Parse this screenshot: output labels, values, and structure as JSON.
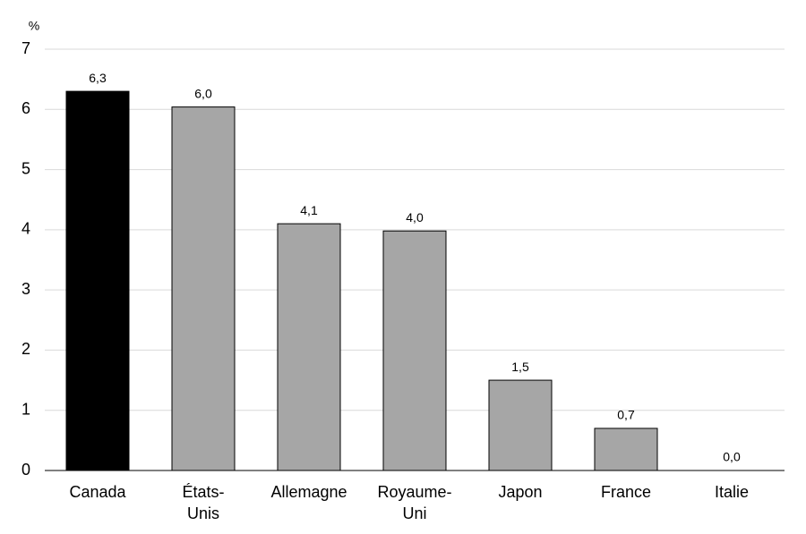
{
  "chart_data": {
    "type": "bar",
    "y_label": "%",
    "categories": [
      "Canada",
      "États-\nUnis",
      "Allemagne",
      "Royaume-\nUni",
      "Japon",
      "France",
      "Italie"
    ],
    "values": [
      6.3,
      6.04,
      4.1,
      3.98,
      1.5,
      0.7,
      0.0
    ],
    "value_labels": [
      "6,3",
      "6,0",
      "4,1",
      "4,0",
      "1,5",
      "0,7",
      "0,0"
    ],
    "colors": [
      "#000000",
      "#a6a6a6",
      "#a6a6a6",
      "#a6a6a6",
      "#a6a6a6",
      "#a6a6a6",
      "#a6a6a6"
    ],
    "ylim": [
      0,
      7
    ],
    "yticks": [
      0,
      1,
      2,
      3,
      4,
      5,
      6,
      7
    ],
    "grid": true
  }
}
